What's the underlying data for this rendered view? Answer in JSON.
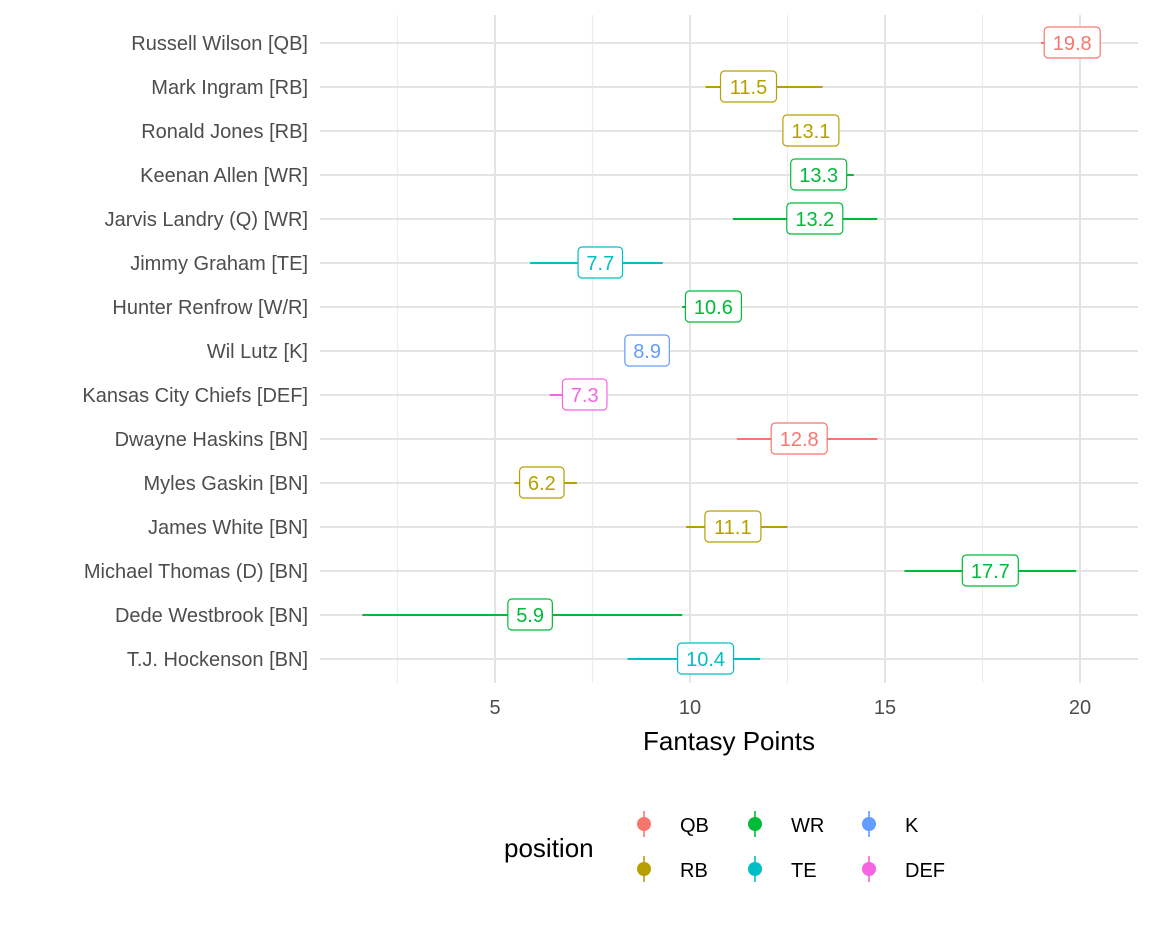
{
  "chart_data": {
    "type": "scatter",
    "xlabel": "Fantasy Points",
    "ylabel": "",
    "xlim": [
      0.7,
      21.5
    ],
    "xticks": [
      5,
      10,
      15,
      20
    ],
    "grid": true,
    "legend": {
      "title": "position",
      "placement": "bottom",
      "entries": [
        {
          "name": "QB",
          "color": "#F8766D"
        },
        {
          "name": "RB",
          "color": "#B79F00"
        },
        {
          "name": "WR",
          "color": "#00BA38"
        },
        {
          "name": "TE",
          "color": "#00BFC4"
        },
        {
          "name": "K",
          "color": "#619CFF"
        },
        {
          "name": "DEF",
          "color": "#F564E3"
        }
      ]
    },
    "players": [
      {
        "name": "Russell Wilson [QB]",
        "position": "QB",
        "value": 19.8,
        "label": "19.8",
        "low": 19.0,
        "high": 19.8
      },
      {
        "name": "Mark Ingram [RB]",
        "position": "RB",
        "value": 11.5,
        "label": "11.5",
        "low": 10.4,
        "high": 13.4
      },
      {
        "name": "Ronald Jones [RB]",
        "position": "RB",
        "value": 13.1,
        "label": "13.1",
        "low": 13.0,
        "high": 13.3
      },
      {
        "name": "Keenan Allen [WR]",
        "position": "WR",
        "value": 13.3,
        "label": "13.3",
        "low": 13.0,
        "high": 14.2
      },
      {
        "name": "Jarvis Landry (Q) [WR]",
        "position": "WR",
        "value": 13.2,
        "label": "13.2",
        "low": 11.1,
        "high": 14.8
      },
      {
        "name": "Jimmy Graham [TE]",
        "position": "TE",
        "value": 7.7,
        "label": "7.7",
        "low": 5.9,
        "high": 9.3
      },
      {
        "name": "Hunter Renfrow [W/R]",
        "position": "WR",
        "value": 10.6,
        "label": "10.6",
        "low": 9.8,
        "high": 10.6
      },
      {
        "name": "Wil Lutz [K]",
        "position": "K",
        "value": 8.9,
        "label": "8.9",
        "low": 8.4,
        "high": 8.9
      },
      {
        "name": "Kansas City Chiefs [DEF]",
        "position": "DEF",
        "value": 7.3,
        "label": "7.3",
        "low": 6.4,
        "high": 7.3
      },
      {
        "name": "Dwayne Haskins [BN]",
        "position": "QB",
        "value": 12.8,
        "label": "12.8",
        "low": 11.2,
        "high": 14.8
      },
      {
        "name": "Myles Gaskin [BN]",
        "position": "RB",
        "value": 6.2,
        "label": "6.2",
        "low": 5.5,
        "high": 7.1
      },
      {
        "name": "James White [BN]",
        "position": "RB",
        "value": 11.1,
        "label": "11.1",
        "low": 9.9,
        "high": 12.5
      },
      {
        "name": "Michael Thomas (D) [BN]",
        "position": "WR",
        "value": 17.7,
        "label": "17.7",
        "low": 15.5,
        "high": 19.9
      },
      {
        "name": "Dede Westbrook [BN]",
        "position": "WR",
        "value": 5.9,
        "label": "5.9",
        "low": 1.6,
        "high": 9.8
      },
      {
        "name": "T.J. Hockenson [BN]",
        "position": "TE",
        "value": 10.4,
        "label": "10.4",
        "low": 8.4,
        "high": 11.8
      }
    ]
  }
}
